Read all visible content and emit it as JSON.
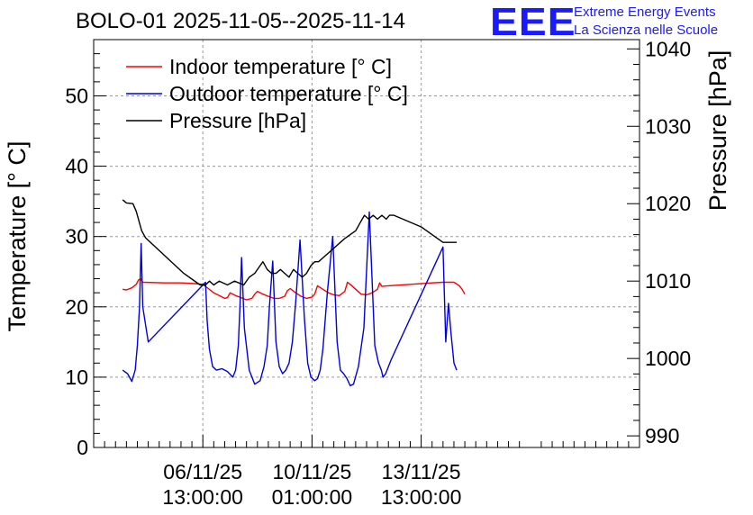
{
  "header": {
    "title": "BOLO-01 2025-11-05--2025-11-14",
    "logo_text": "EEE",
    "org_line1": "Extreme Energy Events",
    "org_line2": "La Scienza nelle Scuole"
  },
  "colors": {
    "indoor": "#ff0000",
    "outdoor": "#0000dd",
    "pressure": "#000000",
    "logo": "#1a1aff",
    "grid": "#9a9a9a"
  },
  "chart_data": {
    "type": "line",
    "title": "BOLO-01 2025-11-05--2025-11-14",
    "ylabel": "Temperature [° C]",
    "y2label": "Pressure [hPa]",
    "ylim": [
      0,
      58
    ],
    "y2lim": [
      988.5,
      1041.2
    ],
    "xlim": [
      0,
      10
    ],
    "yticks": [
      0,
      10,
      20,
      30,
      40,
      50
    ],
    "y2ticks": [
      990,
      1000,
      1010,
      1020,
      1030,
      1040
    ],
    "xticks": [
      {
        "x": 2.0,
        "line1": "06/11/25",
        "line2": "13:00:00"
      },
      {
        "x": 4.0,
        "line1": "10/11/25",
        "line2": "01:00:00"
      },
      {
        "x": 6.0,
        "line1": "13/11/25",
        "line2": "13:00:00"
      }
    ],
    "grid": true,
    "legend_position": "top-left",
    "series": [
      {
        "name": "Indoor temperature [° C]",
        "axis": "left",
        "color": "#ff0000",
        "x": [
          0.53,
          0.6,
          0.7,
          0.78,
          0.82,
          0.86,
          0.9,
          1.3,
          1.6,
          1.85,
          2.0,
          2.1,
          2.2,
          2.3,
          2.4,
          2.45,
          2.5,
          2.6,
          2.7,
          2.8,
          2.9,
          2.95,
          3.0,
          3.1,
          3.2,
          3.3,
          3.4,
          3.5,
          3.55,
          3.6,
          3.7,
          3.8,
          3.9,
          4.0,
          4.05,
          4.1,
          4.2,
          4.3,
          4.4,
          4.5,
          4.6,
          4.65,
          4.7,
          4.8,
          4.9,
          5.0,
          5.1,
          5.2,
          5.24,
          5.28,
          5.4,
          5.8,
          6.2,
          6.4,
          6.6,
          6.7,
          6.75,
          6.8
        ],
        "y": [
          22.5,
          22.4,
          22.7,
          23.2,
          23.8,
          24.0,
          23.5,
          23.4,
          23.4,
          23.3,
          23.2,
          22.6,
          22.0,
          21.6,
          21.2,
          21.3,
          22.0,
          21.6,
          21.3,
          21.0,
          21.2,
          21.8,
          22.2,
          21.8,
          21.5,
          21.2,
          21.2,
          21.5,
          22.3,
          22.6,
          22.0,
          21.5,
          21.2,
          21.4,
          21.8,
          23.0,
          22.5,
          22.0,
          21.7,
          21.6,
          22.2,
          23.5,
          23.2,
          22.5,
          21.8,
          21.7,
          22.0,
          22.5,
          23.4,
          22.9,
          23.0,
          23.2,
          23.4,
          23.5,
          23.5,
          23.0,
          22.5,
          21.8
        ]
      },
      {
        "name": "Outdoor temperature [° C]",
        "axis": "left",
        "color": "#0000dd",
        "x": [
          0.53,
          0.62,
          0.7,
          0.76,
          0.8,
          0.84,
          0.87,
          0.9,
          1.0,
          2.05,
          2.08,
          2.12,
          2.18,
          2.25,
          2.35,
          2.45,
          2.55,
          2.6,
          2.65,
          2.68,
          2.71,
          2.76,
          2.85,
          2.95,
          3.05,
          3.12,
          3.18,
          3.22,
          3.28,
          3.34,
          3.4,
          3.46,
          3.52,
          3.58,
          3.64,
          3.7,
          3.78,
          3.86,
          3.92,
          3.98,
          4.05,
          4.1,
          4.15,
          4.2,
          4.28,
          4.38,
          4.46,
          4.52,
          4.58,
          4.64,
          4.7,
          4.76,
          4.85,
          4.95,
          5.05,
          5.15,
          5.22,
          5.27,
          5.3,
          5.35,
          5.45,
          6.4,
          6.45,
          6.5,
          6.55,
          6.6,
          6.65
        ],
        "y": [
          11.0,
          10.5,
          9.4,
          11.0,
          14.5,
          20.0,
          29.0,
          20.0,
          15.0,
          23.5,
          18.0,
          14.0,
          11.5,
          11.0,
          11.2,
          10.8,
          10.0,
          11.0,
          14.5,
          20.0,
          27.0,
          17.0,
          11.0,
          9.0,
          9.5,
          11.5,
          14.5,
          20.0,
          26.5,
          15.0,
          11.5,
          10.5,
          11.0,
          12.0,
          15.0,
          20.5,
          29.5,
          18.5,
          12.0,
          10.0,
          9.5,
          9.8,
          11.0,
          14.0,
          22.0,
          30.0,
          15.0,
          11.0,
          10.5,
          9.8,
          8.8,
          9.0,
          11.5,
          17.0,
          33.5,
          14.5,
          12.0,
          11.0,
          10.0,
          10.5,
          12.5,
          28.5,
          15.0,
          20.5,
          16.0,
          12.0,
          11.0
        ]
      },
      {
        "name": "Pressure [hPa]",
        "axis": "right",
        "color": "#000000",
        "x": [
          0.53,
          0.6,
          0.72,
          0.78,
          0.82,
          0.88,
          0.95,
          1.65,
          1.95,
          2.05,
          2.12,
          2.2,
          2.3,
          2.45,
          2.58,
          2.75,
          2.85,
          2.95,
          3.05,
          3.1,
          3.18,
          3.26,
          3.34,
          3.42,
          3.5,
          3.58,
          3.66,
          3.74,
          3.82,
          3.9,
          3.98,
          4.05,
          4.12,
          4.2,
          4.28,
          4.36,
          4.44,
          4.52,
          4.6,
          4.7,
          4.8,
          4.88,
          4.96,
          5.04,
          5.12,
          5.2,
          5.28,
          5.36,
          5.42,
          5.5,
          6.0,
          6.4,
          6.65
        ],
        "y": [
          1020.5,
          1020.1,
          1020.0,
          1019.0,
          1018.0,
          1016.5,
          1015.6,
          1011.0,
          1009.5,
          1009.5,
          1010.0,
          1009.5,
          1010.0,
          1009.5,
          1010.0,
          1009.5,
          1010.5,
          1011.0,
          1012.0,
          1012.5,
          1011.5,
          1011.0,
          1011.0,
          1011.5,
          1011.0,
          1010.5,
          1011.5,
          1011.0,
          1010.5,
          1011.0,
          1012.0,
          1012.5,
          1012.5,
          1013.0,
          1013.5,
          1014.0,
          1014.5,
          1015.0,
          1015.5,
          1016.0,
          1016.5,
          1017.5,
          1018.5,
          1018.0,
          1018.5,
          1018.0,
          1018.5,
          1018.0,
          1018.5,
          1018.5,
          1017.0,
          1015.0,
          1015.0
        ]
      }
    ]
  }
}
